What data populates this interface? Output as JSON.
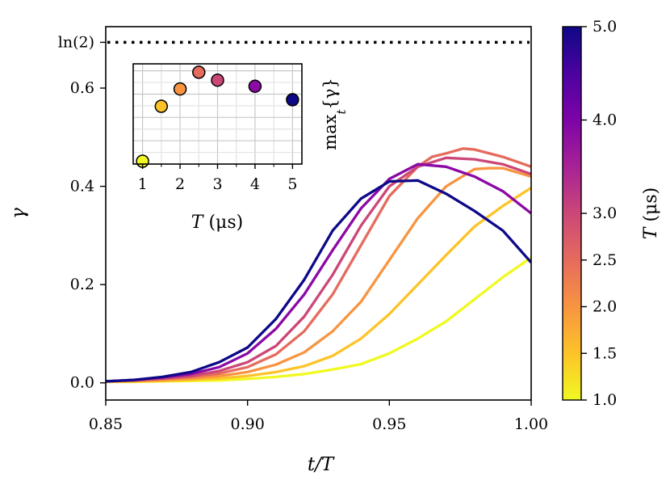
{
  "chart_data": [
    {
      "type": "line",
      "xlabel": "t/T",
      "ylabel": "γ",
      "xlim": [
        0.85,
        1.0
      ],
      "ylim": [
        -0.035,
        0.725
      ],
      "x_ticks": [
        "0.85",
        "0.90",
        "0.95",
        "1.00"
      ],
      "y_ticks": [
        "0.0",
        "0.2",
        "0.4",
        "0.6",
        "ln(2)"
      ],
      "reference_line": {
        "label": "ln(2)",
        "y": 0.6931,
        "style": "dotted"
      },
      "colorbar": {
        "label": "T (μs)",
        "range": [
          1.0,
          5.0
        ],
        "ticks": [
          "1.0",
          "1.5",
          "2.0",
          "2.5",
          "3.0",
          "4.0",
          "5.0"
        ],
        "colormap": "plasma"
      },
      "series": [
        {
          "T": 1.0,
          "color": "#f0f921",
          "x": [
            0.85,
            0.86,
            0.87,
            0.88,
            0.89,
            0.9,
            0.91,
            0.92,
            0.93,
            0.94,
            0.95,
            0.96,
            0.97,
            0.98,
            0.99,
            1.0
          ],
          "y": [
            0.002,
            0.002,
            0.003,
            0.004,
            0.005,
            0.008,
            0.012,
            0.018,
            0.027,
            0.038,
            0.06,
            0.09,
            0.125,
            0.17,
            0.215,
            0.255
          ]
        },
        {
          "T": 1.5,
          "color": "#fdc328",
          "x": [
            0.85,
            0.86,
            0.87,
            0.88,
            0.89,
            0.9,
            0.91,
            0.92,
            0.93,
            0.94,
            0.95,
            0.96,
            0.97,
            0.98,
            0.99,
            1.0
          ],
          "y": [
            0.002,
            0.003,
            0.004,
            0.006,
            0.009,
            0.014,
            0.022,
            0.034,
            0.055,
            0.09,
            0.14,
            0.2,
            0.26,
            0.318,
            0.36,
            0.397
          ]
        },
        {
          "T": 2.0,
          "color": "#f89441",
          "x": [
            0.85,
            0.86,
            0.87,
            0.88,
            0.89,
            0.9,
            0.91,
            0.92,
            0.93,
            0.94,
            0.95,
            0.96,
            0.97,
            0.98,
            0.985,
            0.99,
            1.0
          ],
          "y": [
            0.003,
            0.004,
            0.006,
            0.009,
            0.014,
            0.022,
            0.037,
            0.062,
            0.105,
            0.165,
            0.25,
            0.335,
            0.4,
            0.435,
            0.437,
            0.437,
            0.42
          ]
        },
        {
          "T": 2.5,
          "color": "#e56b5d",
          "x": [
            0.85,
            0.86,
            0.87,
            0.88,
            0.89,
            0.9,
            0.91,
            0.92,
            0.93,
            0.94,
            0.95,
            0.96,
            0.965,
            0.97,
            0.976,
            0.98,
            0.99,
            1.0
          ],
          "y": [
            0.003,
            0.005,
            0.008,
            0.012,
            0.019,
            0.032,
            0.058,
            0.105,
            0.18,
            0.28,
            0.38,
            0.44,
            0.46,
            0.467,
            0.477,
            0.475,
            0.46,
            0.44
          ]
        },
        {
          "T": 3.0,
          "color": "#cb4778",
          "x": [
            0.85,
            0.86,
            0.87,
            0.88,
            0.89,
            0.9,
            0.91,
            0.92,
            0.93,
            0.94,
            0.95,
            0.96,
            0.97,
            0.98,
            0.99,
            1.0
          ],
          "y": [
            0.003,
            0.005,
            0.009,
            0.014,
            0.024,
            0.042,
            0.075,
            0.135,
            0.22,
            0.32,
            0.4,
            0.44,
            0.458,
            0.455,
            0.445,
            0.425
          ]
        },
        {
          "T": 4.0,
          "color": "#8b0aa5",
          "x": [
            0.85,
            0.86,
            0.87,
            0.88,
            0.89,
            0.9,
            0.91,
            0.92,
            0.93,
            0.94,
            0.95,
            0.96,
            0.97,
            0.98,
            0.99,
            1.0
          ],
          "y": [
            0.003,
            0.006,
            0.011,
            0.018,
            0.032,
            0.06,
            0.11,
            0.18,
            0.27,
            0.355,
            0.415,
            0.445,
            0.44,
            0.42,
            0.39,
            0.345
          ]
        },
        {
          "T": 5.0,
          "color": "#0d0887",
          "x": [
            0.85,
            0.86,
            0.87,
            0.88,
            0.89,
            0.9,
            0.91,
            0.92,
            0.93,
            0.94,
            0.95,
            0.96,
            0.97,
            0.98,
            0.99,
            1.0
          ],
          "y": [
            0.003,
            0.006,
            0.012,
            0.022,
            0.042,
            0.072,
            0.13,
            0.21,
            0.31,
            0.375,
            0.41,
            0.412,
            0.385,
            0.35,
            0.31,
            0.245
          ]
        }
      ]
    },
    {
      "type": "scatter",
      "inset": true,
      "xlabel": "T (μs)",
      "ylabel": "max_t{γ}",
      "xlim": [
        0.75,
        5.25
      ],
      "ylim": [
        0.45,
        0.665
      ],
      "x_ticks": [
        "1",
        "2",
        "3",
        "4",
        "5"
      ],
      "points": [
        {
          "x": 1.0,
          "y": 0.456,
          "color": "#f0f921"
        },
        {
          "x": 1.5,
          "y": 0.574,
          "color": "#fdc328"
        },
        {
          "x": 2.0,
          "y": 0.611,
          "color": "#f89441"
        },
        {
          "x": 2.5,
          "y": 0.647,
          "color": "#e56b5d"
        },
        {
          "x": 3.0,
          "y": 0.63,
          "color": "#cb4778"
        },
        {
          "x": 4.0,
          "y": 0.617,
          "color": "#8b0aa5"
        },
        {
          "x": 5.0,
          "y": 0.588,
          "color": "#0d0887"
        }
      ]
    }
  ]
}
